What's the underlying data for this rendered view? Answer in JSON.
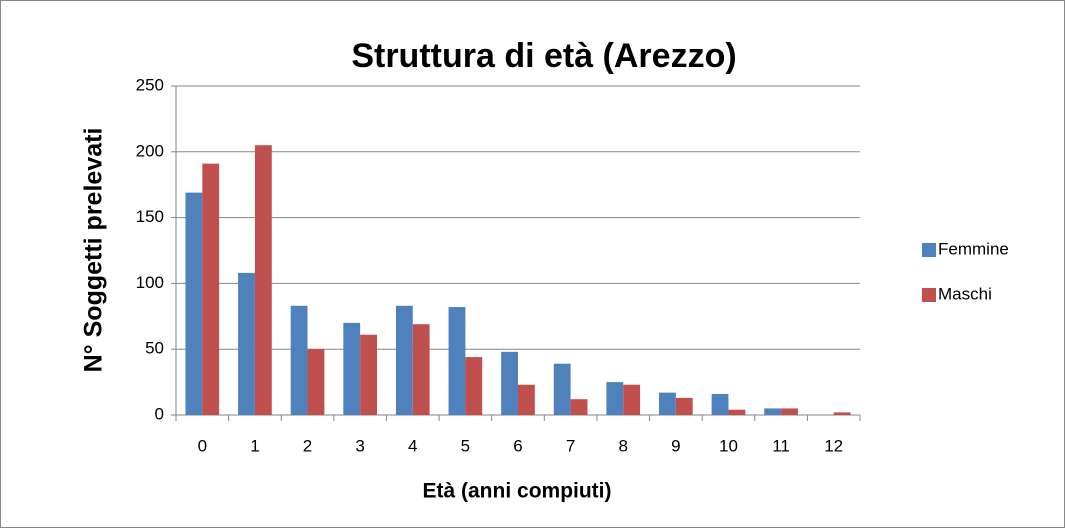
{
  "chart_data": {
    "type": "bar",
    "title": "Struttura di età (Arezzo)",
    "x_label": "Età (anni compiuti)",
    "y_label": "N° Soggetti prelevati",
    "categories": [
      "0",
      "1",
      "2",
      "3",
      "4",
      "5",
      "6",
      "7",
      "8",
      "9",
      "10",
      "11",
      "12"
    ],
    "series": [
      {
        "name": "Femmine",
        "color": "#4f81bd",
        "values": [
          169,
          108,
          83,
          70,
          83,
          82,
          48,
          39,
          25,
          17,
          16,
          5,
          0
        ]
      },
      {
        "name": "Maschi",
        "color": "#c0504d",
        "values": [
          191,
          205,
          50,
          61,
          69,
          44,
          23,
          12,
          23,
          13,
          4,
          5,
          2
        ]
      }
    ],
    "ylim": [
      0,
      250
    ],
    "yticks": [
      0,
      50,
      100,
      150,
      200,
      250
    ],
    "grid": true,
    "legend": "right"
  }
}
